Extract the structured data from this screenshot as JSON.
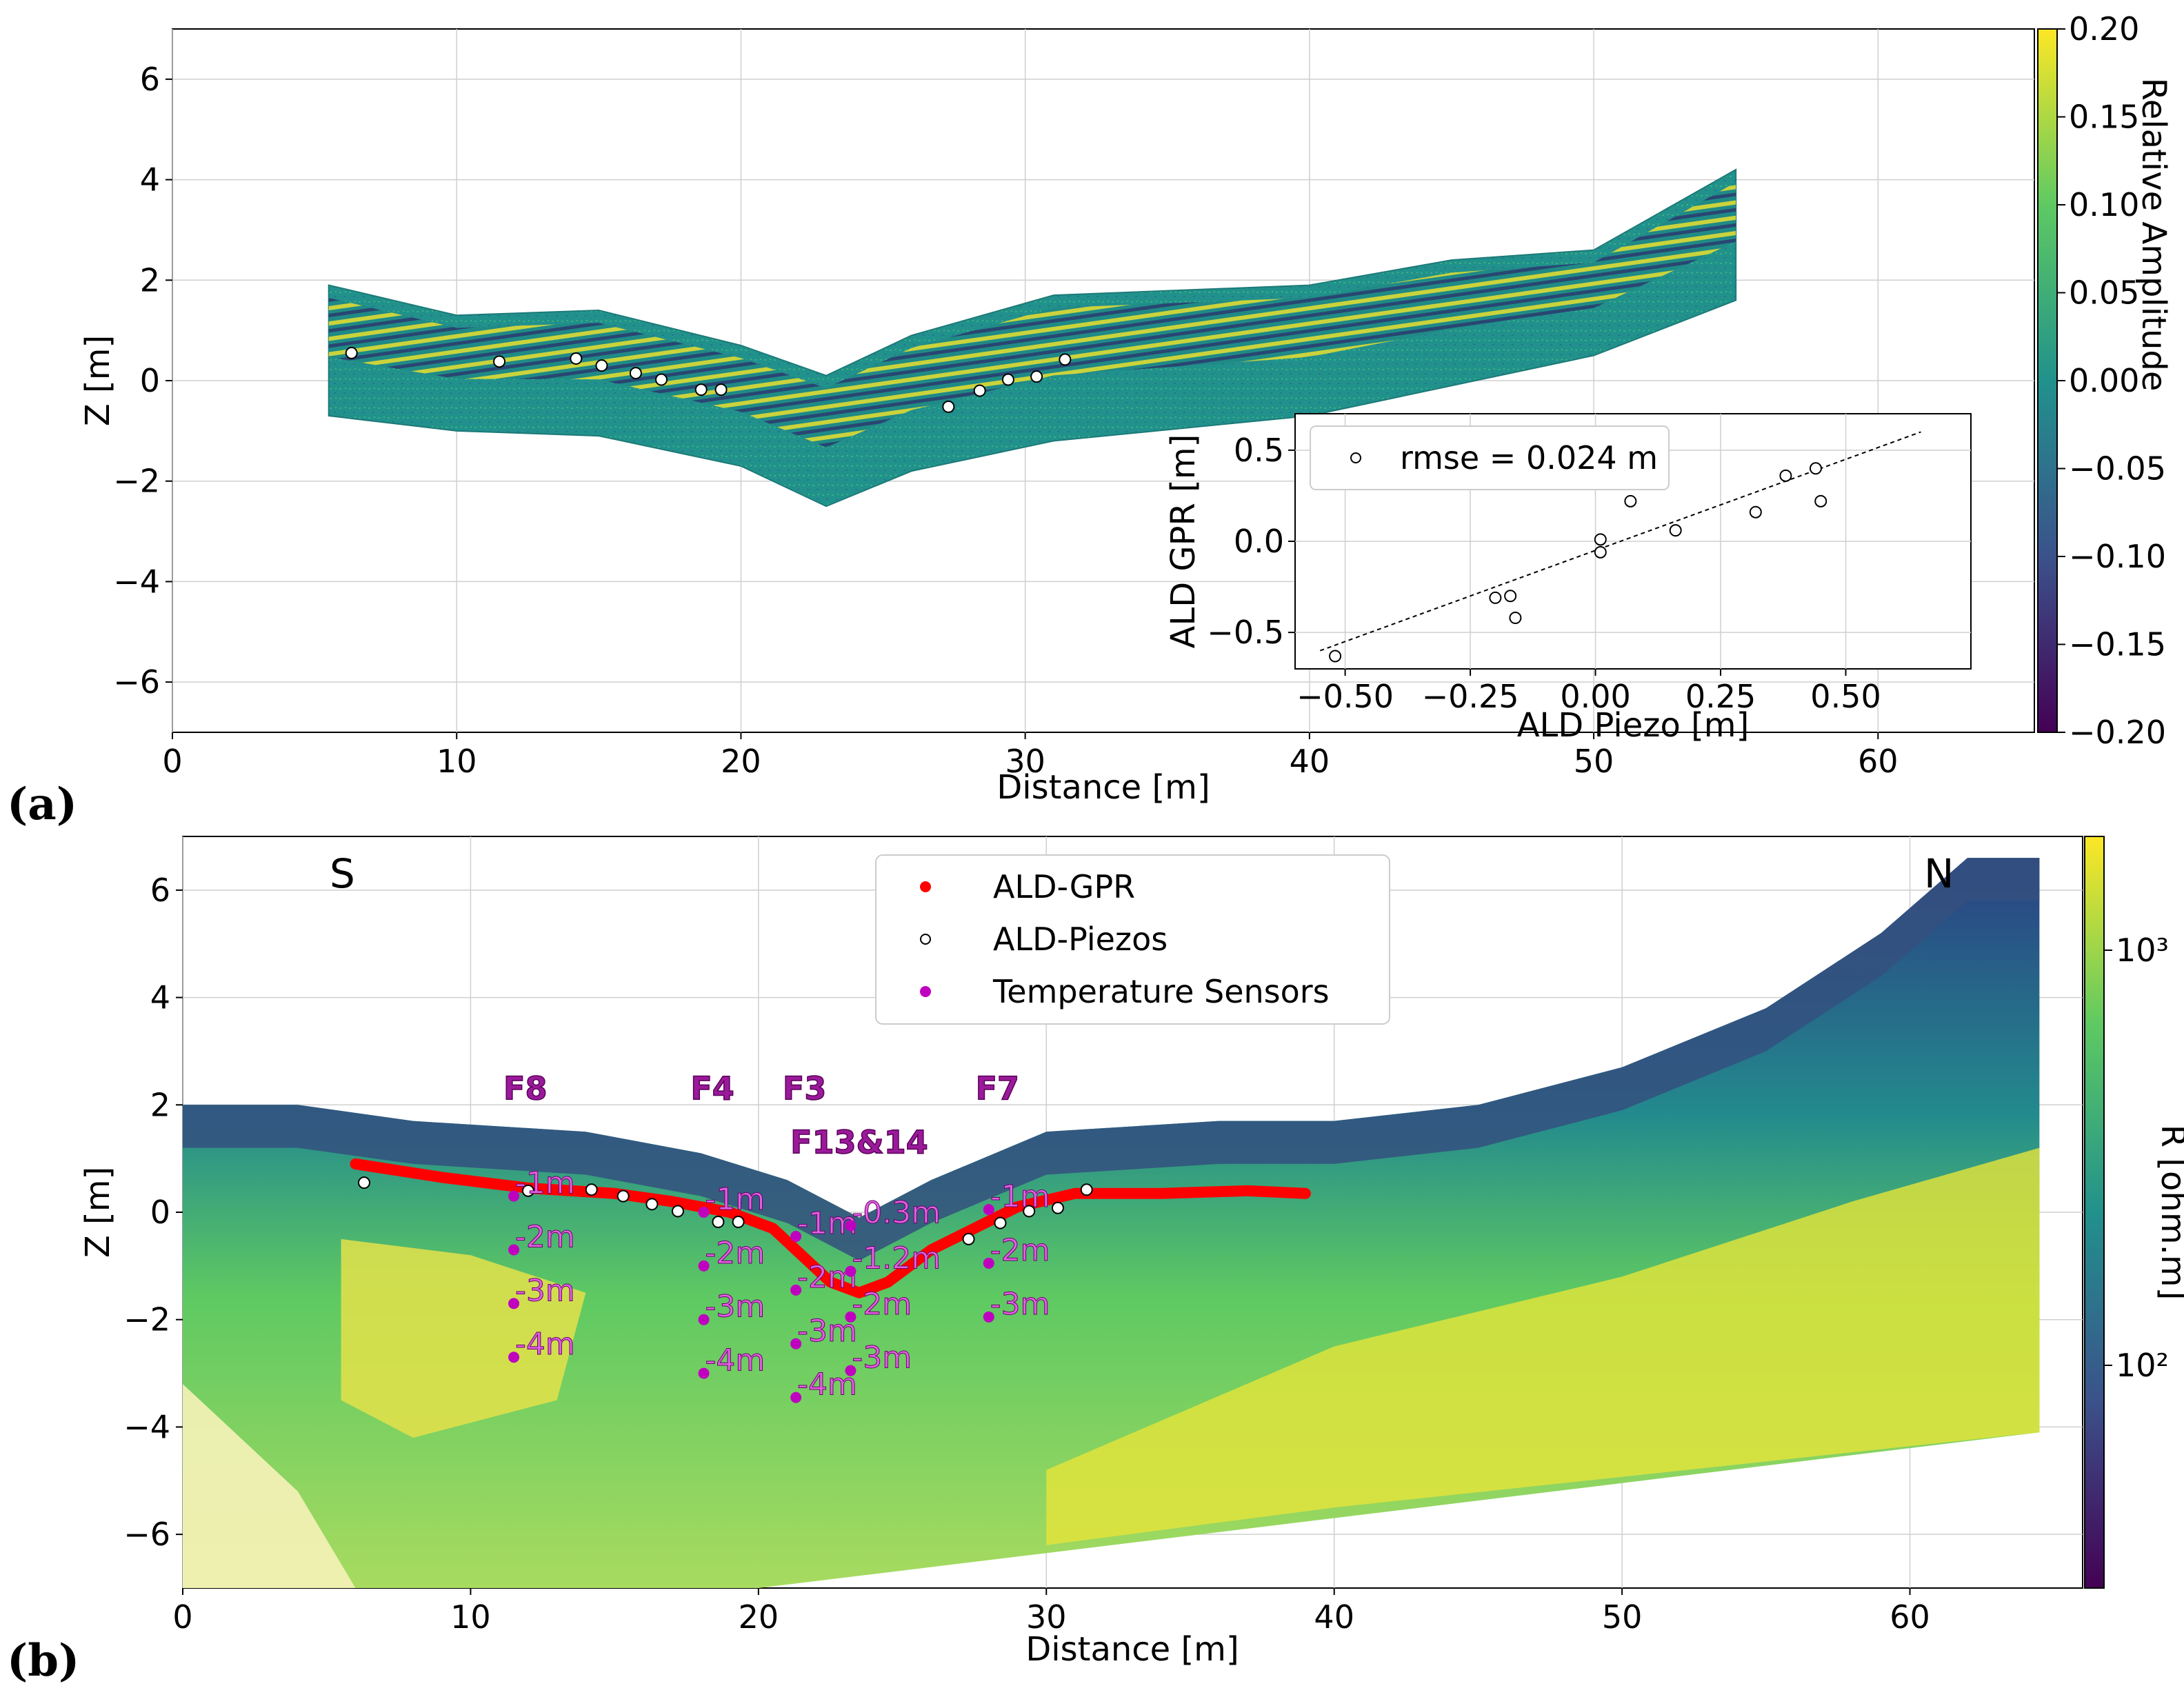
{
  "chart_data": [
    {
      "panel_label": "(a)",
      "type": "image",
      "title": "",
      "xlabel": "Distance [m]",
      "ylabel": "Z [m]",
      "xlim": [
        0,
        65.5
      ],
      "ylim": [
        -7,
        7
      ],
      "xticks": [
        "0",
        "10",
        "20",
        "30",
        "40",
        "50",
        "60"
      ],
      "yticks": [
        "6",
        "4",
        "2",
        "0",
        "−2",
        "−4",
        "−6"
      ],
      "colorbar": {
        "label": "Relative Amplitude",
        "ticks": [
          "0.20",
          "0.15",
          "0.10",
          "0.05",
          "0.00",
          "−0.05",
          "−0.10",
          "−0.15",
          "−0.20"
        ],
        "range": [
          -0.2,
          0.2
        ],
        "colors": [
          "#440154",
          "#3b528b",
          "#21918c",
          "#5ec962",
          "#fde725"
        ]
      },
      "gpr_section": {
        "top": [
          [
            5.5,
            1.9
          ],
          [
            10,
            1.3
          ],
          [
            15,
            1.4
          ],
          [
            20,
            0.7
          ],
          [
            23,
            0.1
          ],
          [
            26,
            0.9
          ],
          [
            31,
            1.7
          ],
          [
            40,
            1.9
          ],
          [
            45,
            2.4
          ],
          [
            50,
            2.6
          ],
          [
            55,
            4.2
          ]
        ],
        "bottom": [
          [
            5.5,
            -0.7
          ],
          [
            10,
            -1.0
          ],
          [
            15,
            -1.1
          ],
          [
            20,
            -1.7
          ],
          [
            23,
            -2.5
          ],
          [
            26,
            -1.8
          ],
          [
            31,
            -1.2
          ],
          [
            40,
            -0.7
          ],
          [
            45,
            -0.1
          ],
          [
            50,
            0.5
          ],
          [
            55,
            1.6
          ]
        ]
      },
      "ald_piezos": [
        {
          "x": 6.3,
          "z": 0.55
        },
        {
          "x": 11.5,
          "z": 0.38
        },
        {
          "x": 14.2,
          "z": 0.44
        },
        {
          "x": 15.1,
          "z": 0.3
        },
        {
          "x": 16.3,
          "z": 0.15
        },
        {
          "x": 17.2,
          "z": 0.02
        },
        {
          "x": 18.6,
          "z": -0.18
        },
        {
          "x": 19.3,
          "z": -0.18
        },
        {
          "x": 27.3,
          "z": -0.52
        },
        {
          "x": 28.4,
          "z": -0.2
        },
        {
          "x": 29.4,
          "z": 0.02
        },
        {
          "x": 30.4,
          "z": 0.08
        },
        {
          "x": 31.4,
          "z": 0.42
        }
      ],
      "inset": {
        "type": "scatter",
        "xlabel": "ALD Piezo [m]",
        "ylabel": "ALD GPR [m]",
        "xlim": [
          -0.6,
          0.75
        ],
        "ylim": [
          -0.7,
          0.7
        ],
        "xticks": [
          "−0.50",
          "−0.25",
          "0.00",
          "0.25",
          "0.50"
        ],
        "yticks": [
          "0.5",
          "0.0",
          "−0.5"
        ],
        "legend": "rmse = 0.024 m",
        "fit_line": [
          [
            -0.55,
            -0.6
          ],
          [
            0.65,
            0.6
          ]
        ],
        "points": [
          {
            "x": -0.52,
            "y": -0.63
          },
          {
            "x": -0.2,
            "y": -0.31
          },
          {
            "x": -0.17,
            "y": -0.3
          },
          {
            "x": -0.16,
            "y": -0.42
          },
          {
            "x": 0.01,
            "y": 0.01
          },
          {
            "x": 0.01,
            "y": -0.06
          },
          {
            "x": 0.07,
            "y": 0.22
          },
          {
            "x": 0.16,
            "y": 0.06
          },
          {
            "x": 0.32,
            "y": 0.16
          },
          {
            "x": 0.38,
            "y": 0.36
          },
          {
            "x": 0.44,
            "y": 0.4
          },
          {
            "x": 0.45,
            "y": 0.22
          }
        ]
      }
    },
    {
      "panel_label": "(b)",
      "type": "heatmap",
      "xlabel": "Distance [m]",
      "ylabel": "Z [m]",
      "xlim": [
        0,
        66
      ],
      "ylim": [
        -7,
        7
      ],
      "xticks": [
        "0",
        "10",
        "20",
        "30",
        "40",
        "50",
        "60"
      ],
      "yticks": [
        "6",
        "4",
        "2",
        "0",
        "−2",
        "−4",
        "−6"
      ],
      "colorbar": {
        "label": "R [ohm.m]",
        "scale": "log",
        "ticks": [
          "10³",
          "10²"
        ],
        "colors": [
          "#440154",
          "#3b528b",
          "#21918c",
          "#5ec962",
          "#fde725"
        ]
      },
      "side_labels": {
        "left": "S",
        "right": "N"
      },
      "legend": [
        {
          "label": "ALD-GPR",
          "color": "#ff0000"
        },
        {
          "label": "ALD-Piezos",
          "color": "#ffffff"
        },
        {
          "label": "Temperature Sensors",
          "color": "#bf00bf"
        }
      ],
      "surface": [
        [
          0,
          2.0
        ],
        [
          4,
          2.0
        ],
        [
          8,
          1.7
        ],
        [
          14,
          1.5
        ],
        [
          18,
          1.1
        ],
        [
          21,
          0.6
        ],
        [
          23.5,
          -0.1
        ],
        [
          26,
          0.6
        ],
        [
          30,
          1.5
        ],
        [
          36,
          1.7
        ],
        [
          40,
          1.7
        ],
        [
          45,
          2.0
        ],
        [
          50,
          2.7
        ],
        [
          55,
          3.8
        ],
        [
          59,
          5.2
        ],
        [
          62,
          6.6
        ],
        [
          64.5,
          6.6
        ]
      ],
      "section_bottom": [
        [
          0,
          -7
        ],
        [
          20,
          -7
        ],
        [
          64.5,
          -4.1
        ]
      ],
      "ald_gpr": [
        [
          6,
          0.9
        ],
        [
          9,
          0.65
        ],
        [
          12,
          0.45
        ],
        [
          15,
          0.35
        ],
        [
          17,
          0.2
        ],
        [
          19,
          0.0
        ],
        [
          20.5,
          -0.3
        ],
        [
          21.5,
          -0.8
        ],
        [
          22.5,
          -1.3
        ],
        [
          23.5,
          -1.5
        ],
        [
          24.5,
          -1.3
        ],
        [
          26,
          -0.7
        ],
        [
          27.5,
          -0.3
        ],
        [
          29,
          0.1
        ],
        [
          31,
          0.35
        ],
        [
          34,
          0.35
        ],
        [
          37,
          0.4
        ],
        [
          39,
          0.35
        ]
      ],
      "ald_piezos": [
        {
          "x": 6.3,
          "z": 0.55
        },
        {
          "x": 12.0,
          "z": 0.4
        },
        {
          "x": 14.2,
          "z": 0.42
        },
        {
          "x": 15.3,
          "z": 0.3
        },
        {
          "x": 16.3,
          "z": 0.15
        },
        {
          "x": 17.2,
          "z": 0.02
        },
        {
          "x": 18.6,
          "z": -0.18
        },
        {
          "x": 19.3,
          "z": -0.18
        },
        {
          "x": 27.3,
          "z": -0.5
        },
        {
          "x": 28.4,
          "z": -0.2
        },
        {
          "x": 29.4,
          "z": 0.02
        },
        {
          "x": 30.4,
          "z": 0.08
        },
        {
          "x": 31.4,
          "z": 0.42
        }
      ],
      "wells": [
        {
          "name": "F8",
          "label_x": 11.9,
          "label_z": 2.1,
          "x": 11.5,
          "sensors": [
            {
              "label": "-1m",
              "z": 0.3
            },
            {
              "label": "-2m",
              "z": -0.7
            },
            {
              "label": "-3m",
              "z": -1.7
            },
            {
              "label": "-4m",
              "z": -2.7
            }
          ]
        },
        {
          "name": "F4",
          "label_x": 18.4,
          "label_z": 2.1,
          "x": 18.1,
          "sensors": [
            {
              "label": "-1m",
              "z": 0.0
            },
            {
              "label": "-2m",
              "z": -1.0
            },
            {
              "label": "-3m",
              "z": -2.0
            },
            {
              "label": "-4m",
              "z": -3.0
            }
          ]
        },
        {
          "name": "F3",
          "label_x": 21.6,
          "label_z": 2.1,
          "x": 21.3,
          "sensors": [
            {
              "label": "-1m",
              "z": -0.45
            },
            {
              "label": "-2m",
              "z": -1.45
            },
            {
              "label": "-3m",
              "z": -2.45
            },
            {
              "label": "-4m",
              "z": -3.45
            }
          ]
        },
        {
          "name": "F13&14",
          "label_x": 23.5,
          "label_z": 1.1,
          "x": 23.2,
          "sensors": [
            {
              "label": "-0.3m",
              "z": -0.25
            },
            {
              "label": "-1.2m",
              "z": -1.1
            },
            {
              "label": "-2m",
              "z": -1.95
            },
            {
              "label": "-3m",
              "z": -2.95
            }
          ]
        },
        {
          "name": "F7",
          "label_x": 28.3,
          "label_z": 2.1,
          "x": 28.0,
          "sensors": [
            {
              "label": "-1m",
              "z": 0.05
            },
            {
              "label": "-2m",
              "z": -0.95
            },
            {
              "label": "-3m",
              "z": -1.95
            }
          ]
        }
      ]
    }
  ]
}
